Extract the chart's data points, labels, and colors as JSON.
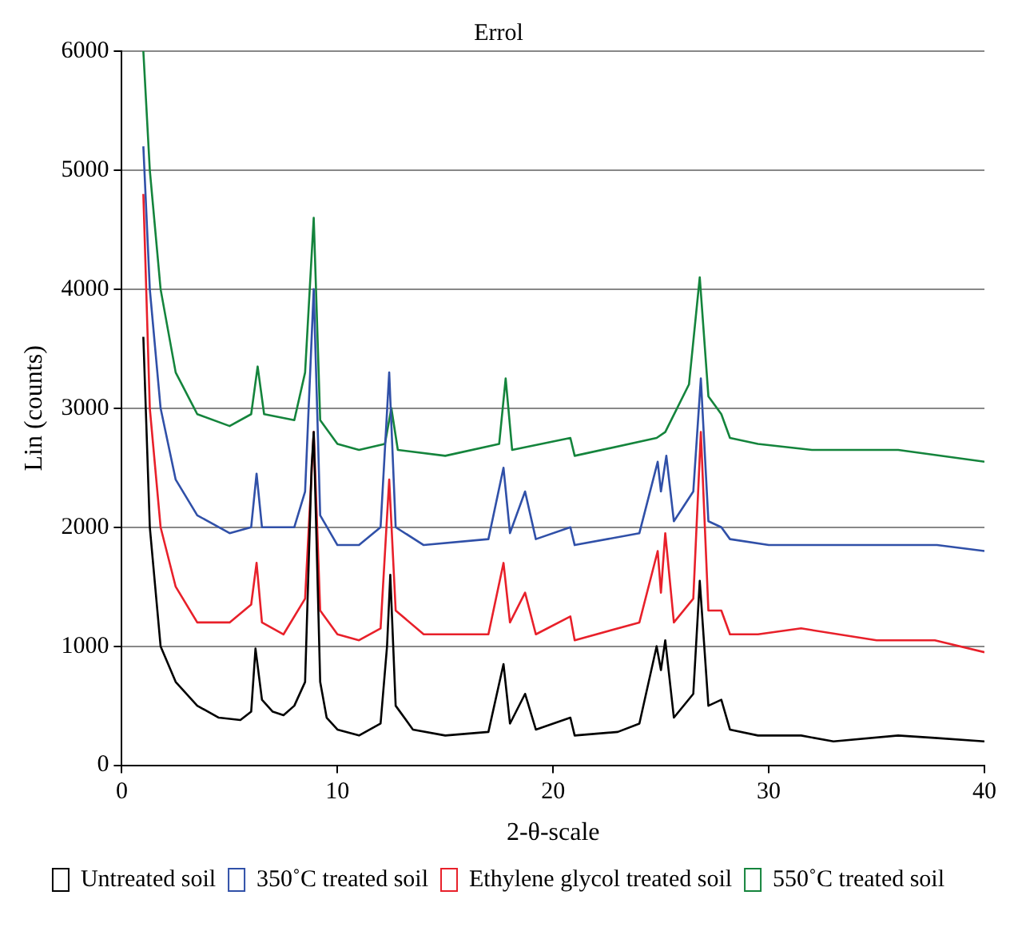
{
  "chart_data": {
    "type": "line",
    "title": "Errol",
    "xlabel": "2-θ-scale",
    "ylabel": "Lin (counts)",
    "xlim": [
      0,
      40
    ],
    "xticks": [
      0,
      10,
      20,
      30,
      40
    ],
    "ylim": [
      0,
      6000
    ],
    "yticks": [
      0,
      1000,
      2000,
      3000,
      4000,
      5000,
      6000
    ],
    "grid": "y",
    "legend": "bottom",
    "marker": "none",
    "line_style": "solid",
    "series": [
      {
        "name": "Untreated soil",
        "color": "#000000",
        "x": [
          1.0,
          1.3,
          1.8,
          2.5,
          3.5,
          4.5,
          5.5,
          6.0,
          6.2,
          6.5,
          7.0,
          7.5,
          8.0,
          8.5,
          8.8,
          8.9,
          9.2,
          9.5,
          10,
          11,
          12,
          12.3,
          12.45,
          12.7,
          13.5,
          15,
          17,
          17.7,
          18,
          18.7,
          19.2,
          20.8,
          21,
          23,
          24,
          24.8,
          25.0,
          25.2,
          25.6,
          26.5,
          26.8,
          27.2,
          27.8,
          28.2,
          29.5,
          31.5,
          33,
          36,
          37.7,
          40
        ],
        "values": [
          3600,
          2000,
          1000,
          700,
          500,
          400,
          380,
          450,
          980,
          550,
          450,
          420,
          500,
          700,
          2500,
          2800,
          700,
          400,
          300,
          250,
          350,
          1000,
          1600,
          500,
          300,
          250,
          280,
          850,
          350,
          600,
          300,
          400,
          250,
          280,
          350,
          1000,
          800,
          1050,
          400,
          600,
          1550,
          500,
          550,
          300,
          250,
          250,
          200,
          250,
          230,
          200
        ]
      },
      {
        "name": "350˚C treated soil",
        "color": "#3050a8",
        "x": [
          1.0,
          1.3,
          1.8,
          2.5,
          3.5,
          5,
          6.0,
          6.25,
          6.5,
          8,
          8.5,
          8.9,
          9.2,
          10,
          11,
          12,
          12.4,
          12.7,
          14,
          17,
          17.7,
          18,
          18.7,
          19.2,
          20.8,
          21,
          24,
          24.85,
          25.0,
          25.25,
          25.6,
          26.5,
          26.85,
          27.2,
          27.8,
          28.2,
          30,
          33.5,
          36,
          37.8,
          40
        ],
        "values": [
          5200,
          4000,
          3000,
          2400,
          2100,
          1950,
          2000,
          2450,
          2000,
          2000,
          2300,
          4000,
          2100,
          1850,
          1850,
          2000,
          3300,
          2000,
          1850,
          1900,
          2500,
          1950,
          2300,
          1900,
          2000,
          1850,
          1950,
          2550,
          2300,
          2600,
          2050,
          2300,
          3250,
          2050,
          2000,
          1900,
          1850,
          1850,
          1850,
          1850,
          1800
        ]
      },
      {
        "name": "Ethylene glycol treated soil",
        "color": "#e8202a",
        "x": [
          1.0,
          1.3,
          1.8,
          2.5,
          3.5,
          5,
          6.0,
          6.25,
          6.5,
          7.5,
          8.5,
          8.9,
          9.2,
          10,
          11,
          12,
          12.4,
          12.7,
          14,
          17,
          17.7,
          18,
          18.7,
          19.2,
          20.8,
          21,
          24,
          24.85,
          25.0,
          25.2,
          25.6,
          26.5,
          26.85,
          27.2,
          27.8,
          28.2,
          29.5,
          31.5,
          35,
          37.7,
          40
        ],
        "values": [
          4800,
          3000,
          2000,
          1500,
          1200,
          1200,
          1350,
          1700,
          1200,
          1100,
          1400,
          2800,
          1300,
          1100,
          1050,
          1150,
          2400,
          1300,
          1100,
          1100,
          1700,
          1200,
          1450,
          1100,
          1250,
          1050,
          1200,
          1800,
          1450,
          1950,
          1200,
          1400,
          2800,
          1300,
          1300,
          1100,
          1100,
          1150,
          1050,
          1050,
          950
        ]
      },
      {
        "name": "550˚C treated soil",
        "color": "#14843c",
        "x": [
          1.0,
          1.3,
          1.8,
          2.5,
          3.5,
          5,
          6.0,
          6.3,
          6.6,
          8,
          8.5,
          8.9,
          9.2,
          10,
          11,
          12.2,
          12.5,
          12.8,
          15,
          17.5,
          17.8,
          18.1,
          20.8,
          21,
          24.8,
          25.2,
          26.3,
          26.8,
          27.2,
          27.8,
          28.2,
          29.5,
          32,
          36,
          40
        ],
        "values": [
          6000,
          5000,
          4000,
          3300,
          2950,
          2850,
          2950,
          3350,
          2950,
          2900,
          3300,
          4600,
          2900,
          2700,
          2650,
          2700,
          3000,
          2650,
          2600,
          2700,
          3250,
          2650,
          2750,
          2600,
          2750,
          2800,
          3200,
          4100,
          3100,
          2950,
          2750,
          2700,
          2650,
          2650,
          2550
        ]
      }
    ]
  }
}
